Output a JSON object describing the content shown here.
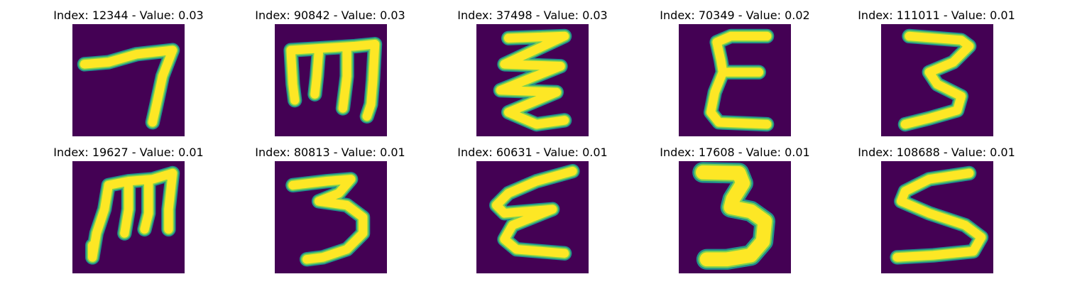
{
  "colors": {
    "background": "#440154",
    "stroke_core": "#fde725",
    "stroke_mid": "#7ad151",
    "stroke_halo": "#21918c"
  },
  "panels": [
    {
      "title": "Index: 12344 - Value: 0.03",
      "glyph": "seven-like-stroke"
    },
    {
      "title": "Index: 90842 - Value: 0.03",
      "glyph": "m-like-stroke"
    },
    {
      "title": "Index: 37498 - Value: 0.03",
      "glyph": "zigzag-stroke"
    },
    {
      "title": "Index: 70349 - Value: 0.02",
      "glyph": "epsilon-like-stroke"
    },
    {
      "title": "Index: 111011 - Value: 0.01",
      "glyph": "three-like-stroke"
    },
    {
      "title": "Index: 19627 - Value: 0.01",
      "glyph": "m-like-stroke"
    },
    {
      "title": "Index: 80813 - Value: 0.01",
      "glyph": "three-like-stroke"
    },
    {
      "title": "Index: 60631 - Value: 0.01",
      "glyph": "epsilon-like-stroke"
    },
    {
      "title": "Index: 17608 - Value: 0.01",
      "glyph": "three-like-stroke"
    },
    {
      "title": "Index: 108688 - Value: 0.01",
      "glyph": "s-like-stroke"
    }
  ]
}
